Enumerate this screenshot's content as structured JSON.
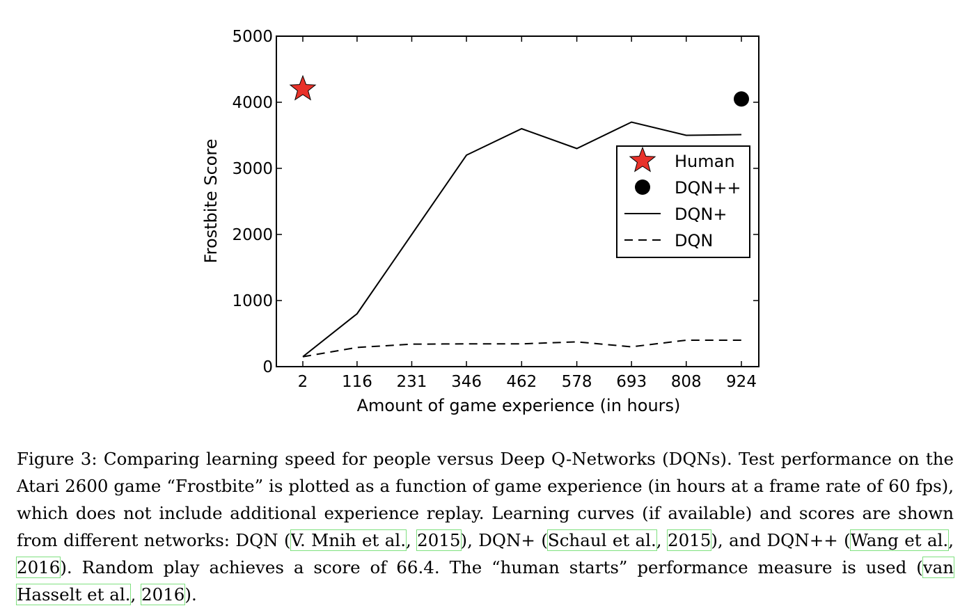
{
  "chart_data": {
    "type": "line",
    "x": [
      2,
      116,
      231,
      346,
      462,
      578,
      693,
      808,
      924
    ],
    "xticks": [
      "2",
      "116",
      "231",
      "346",
      "462",
      "578",
      "693",
      "808",
      "924"
    ],
    "yticks": [
      "0",
      "1000",
      "2000",
      "3000",
      "4000",
      "5000"
    ],
    "xlabel": "Amount of game experience (in hours)",
    "ylabel": "Frostbite Score",
    "ylim": [
      0,
      5000
    ],
    "series": [
      {
        "name": "DQN+",
        "style": "solid",
        "values": [
          150,
          800,
          2000,
          3200,
          3600,
          3300,
          3700,
          3500,
          3510
        ]
      },
      {
        "name": "DQN",
        "style": "dashed",
        "values": [
          150,
          290,
          340,
          345,
          345,
          375,
          300,
          400,
          400
        ]
      }
    ],
    "points": [
      {
        "name": "Human",
        "marker": "star",
        "x": 2,
        "y": 4200,
        "color": "#e8322a"
      },
      {
        "name": "DQN++",
        "marker": "circle",
        "x": 924,
        "y": 4050,
        "color": "#000000"
      }
    ],
    "legend": {
      "position": "center-right",
      "entries": [
        "Human",
        "DQN++",
        "DQN+",
        "DQN"
      ]
    }
  },
  "caption": {
    "prefix": "Figure 3: Comparing learning speed for people versus Deep Q-Networks (DQNs). Test performance on the Atari 2600 game “Frostbite” is plotted as a function of game experience (in hours at a frame rate of 60 fps), which does not include additional experience replay. Learning curves (if available) and scores are shown from different networks: DQN (",
    "cite1_author": "V. Mnih et al.",
    "cite1_sep": ", ",
    "cite1_year": "2015",
    "mid1": "), DQN+ (",
    "cite2_author": "Schaul et al.",
    "cite2_sep": ", ",
    "cite2_year": "2015",
    "mid2": "), and DQN++ (",
    "cite3_author": "Wang et al.",
    "cite3_sep": ", ",
    "cite3_year": "2016",
    "mid3": "). Random play achieves a score of 66.4. The “human starts” performance measure is used (",
    "cite4_author": "van Hasselt et al.",
    "cite4_sep": ", ",
    "cite4_year": "2016",
    "suffix": ")."
  }
}
